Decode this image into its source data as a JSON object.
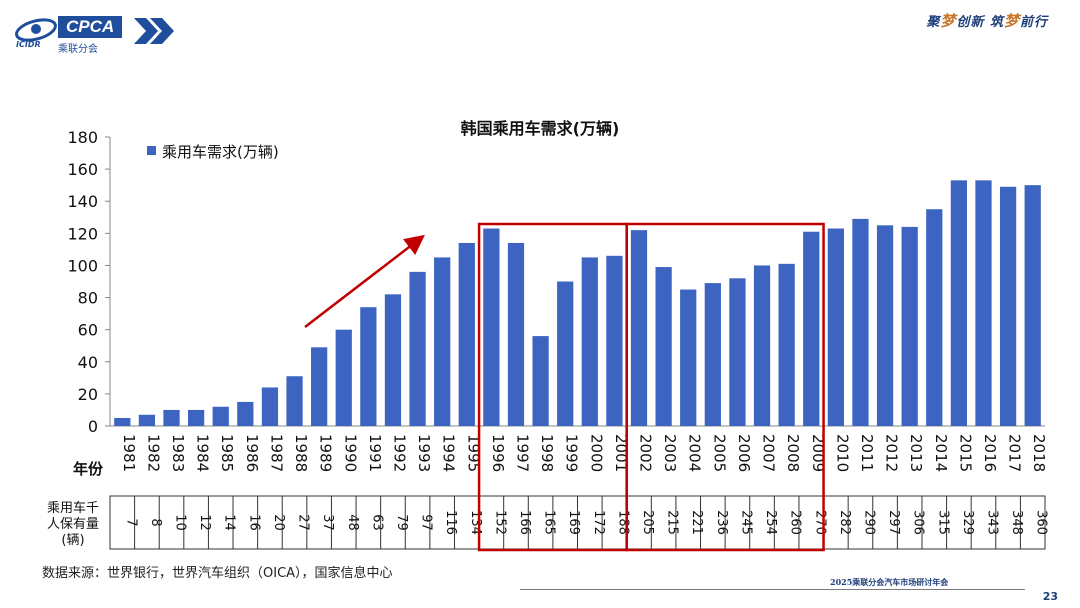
{
  "header": {
    "logo_text": "CPCA",
    "logo_subtitle": "乘联分会",
    "logo_small": "ICIDR",
    "slogan_parts": [
      "聚",
      "梦",
      "创新 筑",
      "梦",
      "前行"
    ]
  },
  "chart_data": {
    "type": "bar",
    "title": "韩国乘用车需求(万辆)",
    "legend": "乘用车需求(万辆)",
    "xlabel": "年份",
    "ylabel": "",
    "ylim": [
      0,
      180
    ],
    "yticks": [
      0,
      20,
      40,
      60,
      80,
      100,
      120,
      140,
      160,
      180
    ],
    "categories": [
      "1981",
      "1982",
      "1983",
      "1984",
      "1985",
      "1986",
      "1987",
      "1988",
      "1989",
      "1990",
      "1991",
      "1992",
      "1993",
      "1994",
      "1995",
      "1996",
      "1997",
      "1998",
      "1999",
      "2000",
      "2001",
      "2002",
      "2003",
      "2004",
      "2005",
      "2006",
      "2007",
      "2008",
      "2009",
      "2010",
      "2011",
      "2012",
      "2013",
      "2014",
      "2015",
      "2016",
      "2017",
      "2018"
    ],
    "values": [
      5,
      7,
      10,
      10,
      12,
      15,
      24,
      31,
      49,
      60,
      74,
      82,
      96,
      105,
      114,
      123,
      114,
      56,
      90,
      105,
      106,
      122,
      99,
      85,
      89,
      92,
      100,
      101,
      121,
      123,
      129,
      125,
      124,
      135,
      153,
      153,
      149,
      150
    ],
    "bar_color": "#3c64c0",
    "highlight_ranges": [
      [
        "1996",
        "2001"
      ],
      [
        "2002",
        "2009"
      ]
    ],
    "highlight_color": "#c00000",
    "table": {
      "row_label": "乘用车千人保有量(辆)",
      "row_label_lines": [
        "乘用车千",
        "人保有量",
        "(辆)"
      ],
      "values": [
        7,
        8,
        10,
        12,
        14,
        16,
        20,
        27,
        37,
        48,
        63,
        79,
        97,
        116,
        134,
        152,
        166,
        165,
        169,
        172,
        188,
        205,
        215,
        221,
        236,
        245,
        254,
        260,
        270,
        282,
        290,
        297,
        306,
        315,
        329,
        343,
        348,
        360
      ]
    }
  },
  "source": "数据来源：世界银行，世界汽车组织（OICA），国家信息中心",
  "footer": {
    "event": "2025乘联分会汽车市场研讨年会",
    "page": "23"
  }
}
